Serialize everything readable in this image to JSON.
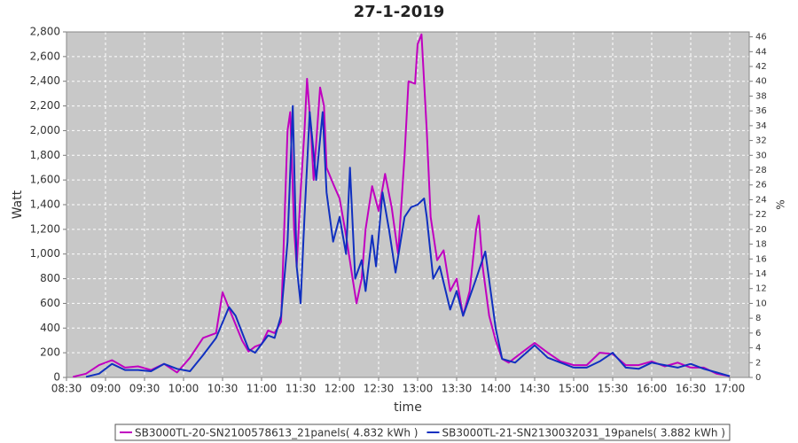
{
  "chart_data": {
    "type": "line",
    "title": "27-1-2019",
    "xlabel": "time",
    "ylabel": "Watt",
    "y2label": "%",
    "xlim": [
      "08:30",
      "17:15"
    ],
    "xticks": [
      "08:30",
      "09:00",
      "09:30",
      "10:00",
      "10:30",
      "11:00",
      "11:30",
      "12:00",
      "12:30",
      "13:00",
      "13:30",
      "14:00",
      "14:30",
      "15:00",
      "15:30",
      "16:00",
      "16:30",
      "17:00"
    ],
    "ylim": [
      0,
      2800
    ],
    "yticks": [
      0,
      200,
      400,
      600,
      800,
      {
        "value": 1000,
        "label": "1,000"
      },
      {
        "value": 1200,
        "label": "1,200"
      },
      {
        "value": 1400,
        "label": "1,400"
      },
      {
        "value": 1600,
        "label": "1,600"
      },
      {
        "value": 1800,
        "label": "1,800"
      },
      {
        "value": 2000,
        "label": "2,000"
      },
      {
        "value": 2200,
        "label": "2,200"
      },
      {
        "value": 2400,
        "label": "2,400"
      },
      {
        "value": 2600,
        "label": "2,600"
      },
      {
        "value": 2800,
        "label": "2,800"
      }
    ],
    "y2lim": [
      0,
      46.67
    ],
    "y2ticks": [
      0,
      2,
      4,
      6,
      8,
      10,
      12,
      14,
      16,
      18,
      20,
      22,
      24,
      26,
      28,
      30,
      32,
      34,
      36,
      38,
      40,
      42,
      44,
      46
    ],
    "grid": true,
    "legend": "bottom",
    "series": [
      {
        "name": "SB3000TL-20-SN2100578613_21panels( 4.832 kWh )",
        "color": "#c000c0",
        "x": [
          "08:35",
          "08:45",
          "08:55",
          "09:05",
          "09:15",
          "09:25",
          "09:35",
          "09:45",
          "09:55",
          "10:05",
          "10:15",
          "10:25",
          "10:30",
          "10:35",
          "10:45",
          "10:50",
          "10:55",
          "11:00",
          "11:05",
          "11:10",
          "11:15",
          "11:20",
          "11:22",
          "11:25",
          "11:27",
          "11:30",
          "11:33",
          "11:35",
          "11:38",
          "11:40",
          "11:45",
          "11:48",
          "11:50",
          "11:55",
          "12:00",
          "12:05",
          "12:10",
          "12:13",
          "12:17",
          "12:20",
          "12:25",
          "12:30",
          "12:35",
          "12:40",
          "12:45",
          "12:50",
          "12:53",
          "12:58",
          "13:00",
          "13:03",
          "13:07",
          "13:10",
          "13:15",
          "13:20",
          "13:25",
          "13:30",
          "13:35",
          "13:40",
          "13:45",
          "13:47",
          "13:50",
          "13:55",
          "14:00",
          "14:05",
          "14:10",
          "14:20",
          "14:30",
          "14:40",
          "14:50",
          "15:00",
          "15:10",
          "15:20",
          "15:30",
          "15:40",
          "15:50",
          "16:00",
          "16:10",
          "16:20",
          "16:30",
          "16:40",
          "16:50",
          "17:00"
        ],
        "values": [
          5,
          30,
          100,
          140,
          80,
          90,
          60,
          110,
          40,
          160,
          320,
          360,
          690,
          560,
          300,
          210,
          250,
          270,
          380,
          360,
          450,
          2000,
          2150,
          1200,
          900,
          1500,
          2000,
          2420,
          2000,
          1600,
          2350,
          2200,
          1700,
          1570,
          1450,
          1150,
          800,
          600,
          800,
          1200,
          1550,
          1350,
          1650,
          1380,
          1000,
          1800,
          2400,
          2380,
          2700,
          2780,
          2000,
          1300,
          950,
          1030,
          700,
          800,
          500,
          700,
          1200,
          1310,
          900,
          500,
          300,
          150,
          120,
          200,
          280,
          200,
          130,
          100,
          100,
          200,
          190,
          100,
          100,
          130,
          90,
          120,
          80,
          80,
          30,
          10
        ]
      },
      {
        "name": "SB3000TL-21-SN2130032031_19panels( 3.882 kWh )",
        "color": "#1030c0",
        "x": [
          "08:45",
          "08:55",
          "09:05",
          "09:15",
          "09:25",
          "09:35",
          "09:45",
          "09:55",
          "10:05",
          "10:15",
          "10:25",
          "10:35",
          "10:40",
          "10:50",
          "10:55",
          "11:00",
          "11:05",
          "11:10",
          "11:15",
          "11:20",
          "11:24",
          "11:27",
          "11:30",
          "11:33",
          "11:37",
          "11:42",
          "11:47",
          "11:50",
          "11:55",
          "12:00",
          "12:05",
          "12:08",
          "12:12",
          "12:17",
          "12:20",
          "12:25",
          "12:28",
          "12:33",
          "12:38",
          "12:43",
          "12:50",
          "12:55",
          "13:00",
          "13:05",
          "13:07",
          "13:12",
          "13:17",
          "13:25",
          "13:30",
          "13:35",
          "13:45",
          "13:52",
          "14:00",
          "14:05",
          "14:15",
          "14:30",
          "14:40",
          "14:50",
          "15:00",
          "15:10",
          "15:20",
          "15:30",
          "15:40",
          "15:50",
          "16:00",
          "16:10",
          "16:20",
          "16:30",
          "16:40",
          "16:50",
          "17:00"
        ],
        "values": [
          5,
          30,
          110,
          60,
          60,
          50,
          110,
          70,
          50,
          180,
          320,
          570,
          500,
          230,
          200,
          270,
          340,
          320,
          500,
          1100,
          2200,
          900,
          600,
          1300,
          2150,
          1600,
          2150,
          1500,
          1100,
          1300,
          1000,
          1700,
          800,
          950,
          700,
          1150,
          900,
          1500,
          1200,
          850,
          1300,
          1380,
          1400,
          1450,
          1300,
          800,
          900,
          550,
          700,
          500,
          800,
          1020,
          400,
          150,
          120,
          260,
          160,
          120,
          80,
          80,
          130,
          200,
          80,
          70,
          120,
          100,
          80,
          110,
          70,
          40,
          10
        ]
      }
    ]
  }
}
